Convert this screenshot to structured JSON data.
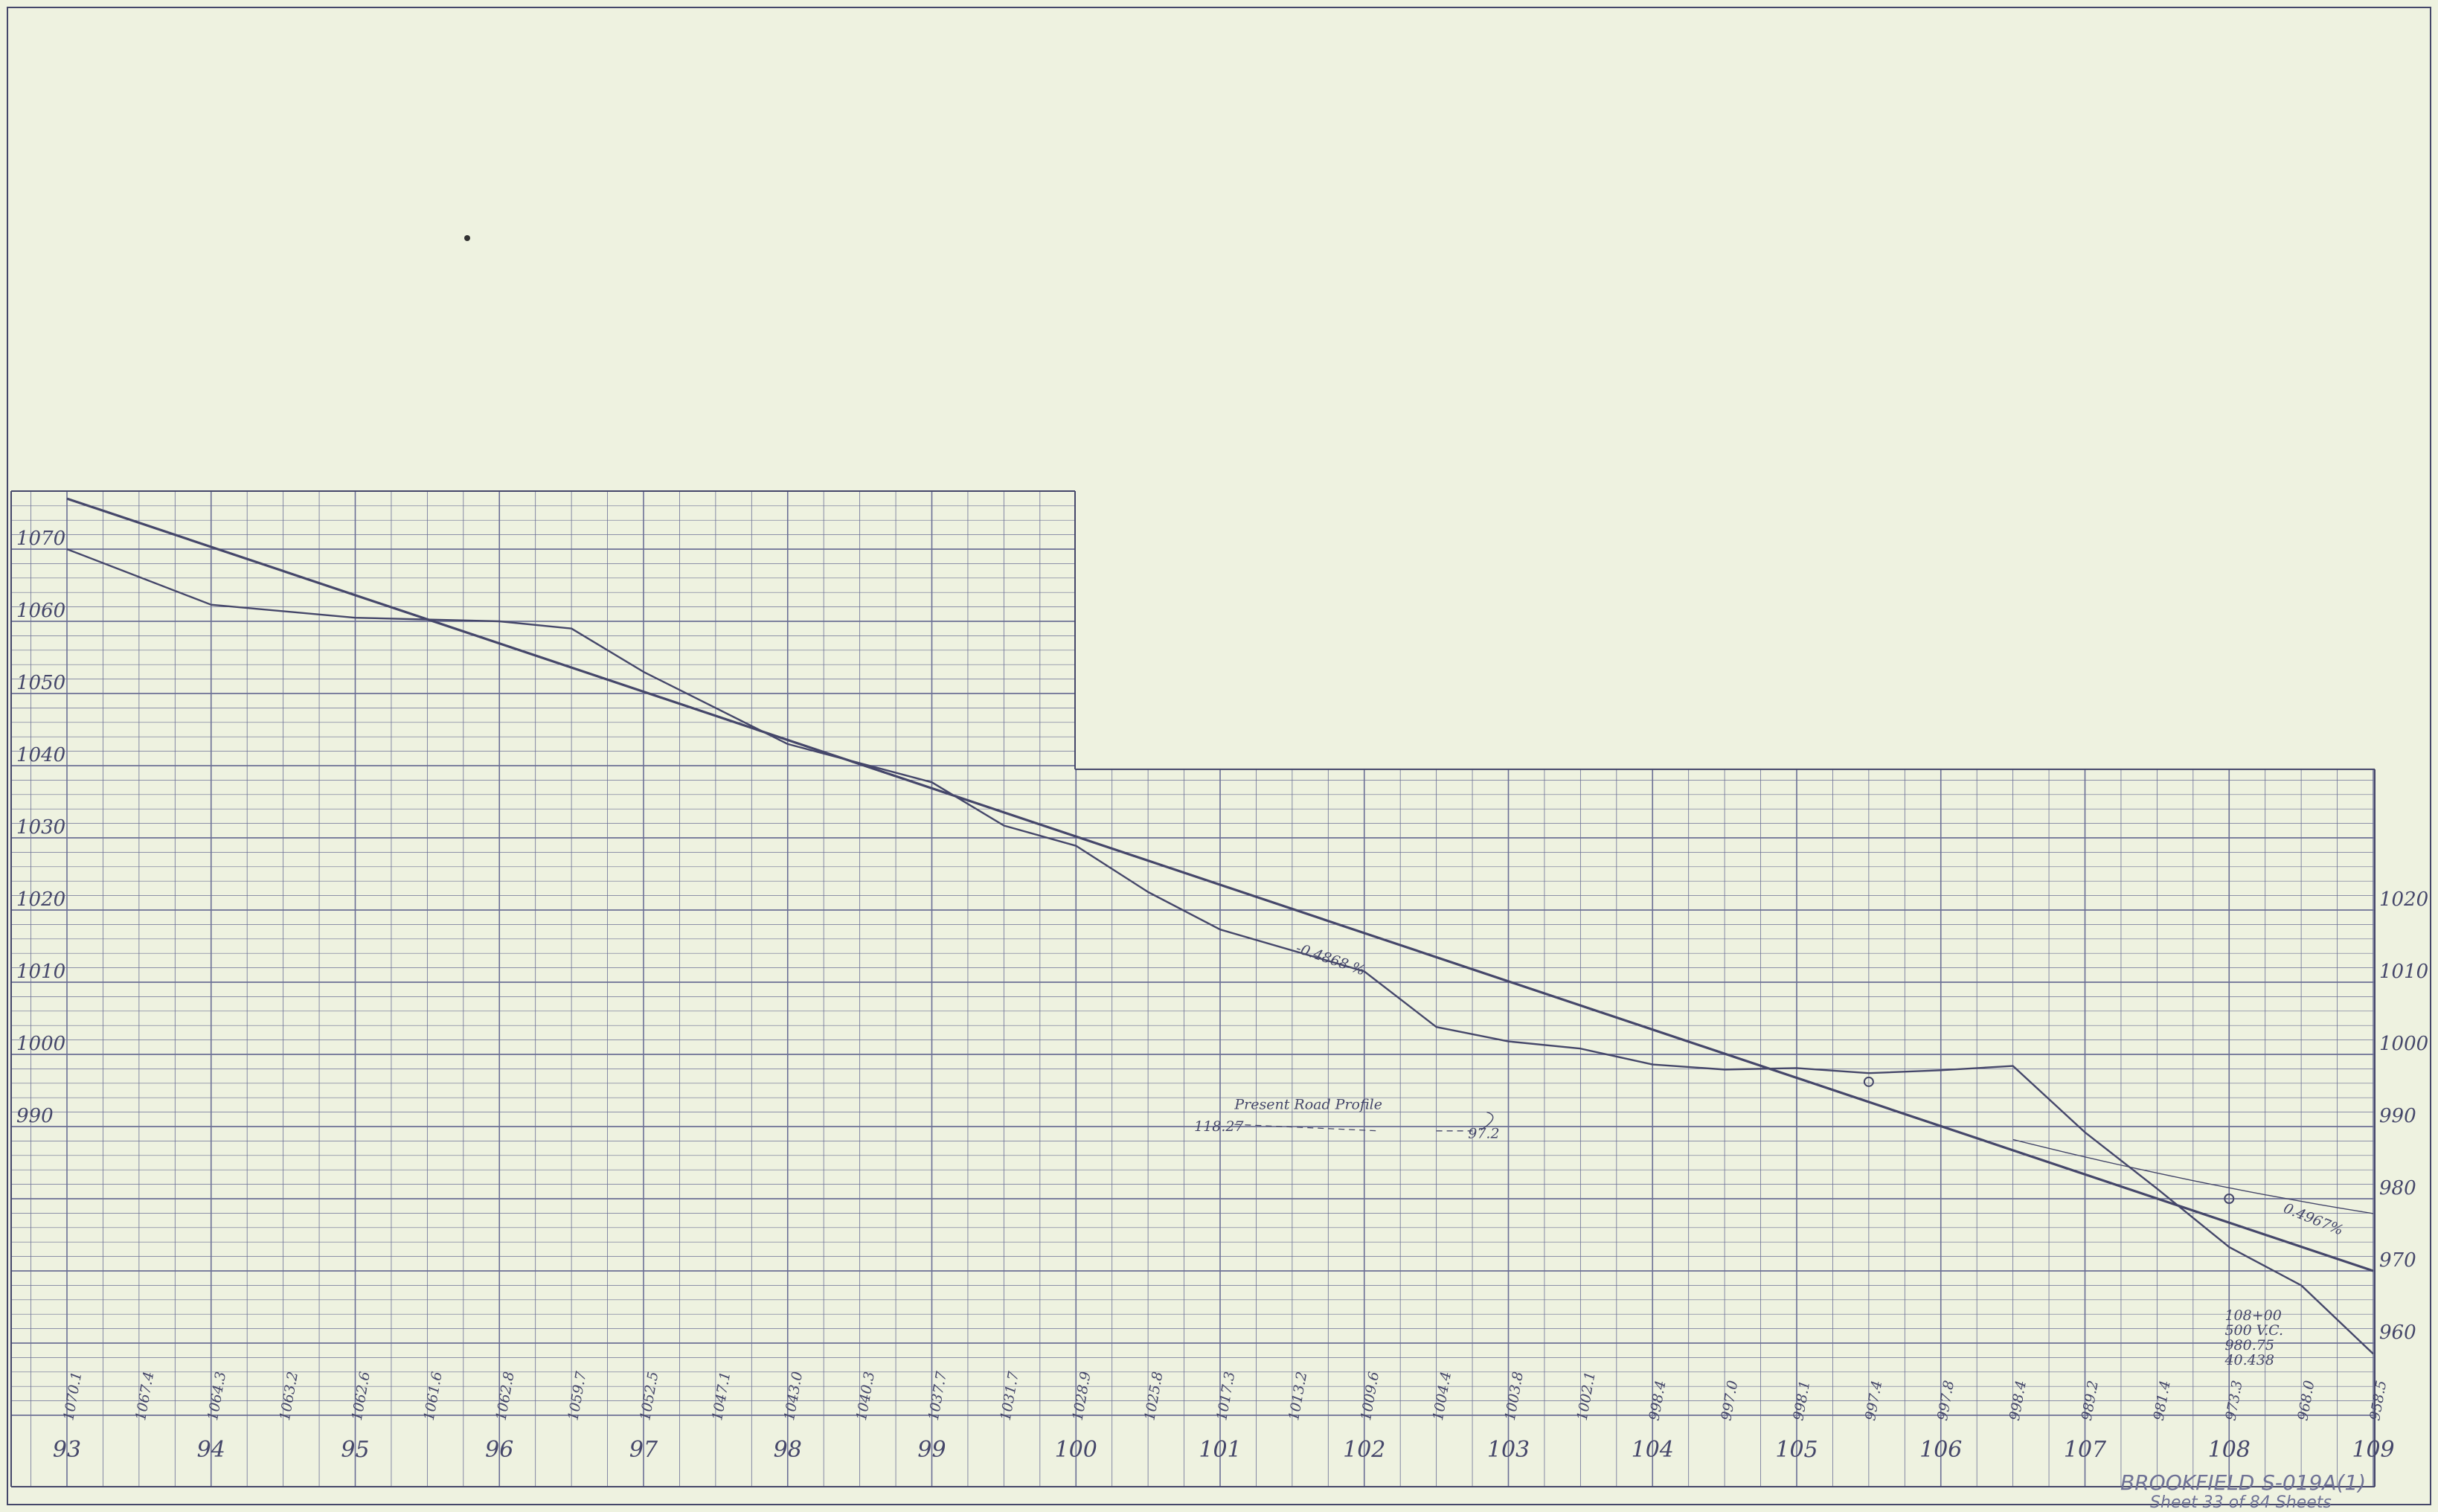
{
  "chart_data": {
    "type": "line",
    "x_axis": {
      "tick_labels": [
        "93",
        "94",
        "95",
        "96",
        "97",
        "98",
        "99",
        "100",
        "101",
        "102",
        "103",
        "104",
        "105",
        "106",
        "107",
        "108",
        "109"
      ],
      "range": [
        93,
        109
      ]
    },
    "y_axis": {
      "left_tick_labels": [
        "1070",
        "1060",
        "1050",
        "1040",
        "1030",
        "1020",
        "1010",
        "1000",
        "990"
      ],
      "right_tick_labels": [
        "1020",
        "1010",
        "1000",
        "990",
        "980",
        "970",
        "960"
      ],
      "range": [
        953,
        1078
      ]
    },
    "series": [
      {
        "role": "grade",
        "x": [
          93,
          109
        ],
        "y": [
          1077,
          970
        ]
      },
      {
        "role": "ground",
        "x": [
          93.0,
          94.0,
          95.0,
          96.0,
          96.5,
          97.0,
          98.0,
          99.0,
          99.5,
          100.0,
          100.5,
          101.0,
          102.0,
          102.5,
          103.0,
          103.5,
          104.0,
          104.5,
          105.0,
          105.5,
          106.0,
          106.5,
          107.0,
          107.5,
          108.0,
          108.5,
          109.0
        ],
        "y": [
          1070.0,
          1062.3,
          1060.5,
          1060.0,
          1059.0,
          1053.0,
          1043.0,
          1037.7,
          1031.7,
          1028.9,
          1022.5,
          1017.3,
          1011.5,
          1003.8,
          1001.8,
          1000.8,
          998.6,
          997.9,
          998.1,
          997.4,
          997.8,
          998.4,
          989.2,
          981.4,
          973.3,
          968.0,
          958.5
        ]
      }
    ],
    "ground_elevation_labels": [
      "1070.1",
      "1067.4",
      "1064.3",
      "1063.2",
      "1062.6",
      "1061.6",
      "1062.8",
      "1059.7",
      "1052.5",
      "1047.1",
      "1043.0",
      "1040.3",
      "1037.7",
      "1031.7",
      "1028.9",
      "1025.8",
      "1017.3",
      "1013.2",
      "1009.6",
      "1004.4",
      "1003.8",
      "1002.1",
      "998.4",
      "997.0",
      "998.1",
      "997.4",
      "997.8",
      "998.4",
      "989.2",
      "981.4",
      "973.3",
      "968.0",
      "958.5"
    ],
    "annotations": {
      "grade": "-0.4868 %",
      "present_road": "Present Road Profile",
      "el_left": "118.27",
      "el_right": "97.2",
      "grade_right": "0.4967%",
      "curve": [
        "108+00",
        "500 V.C.",
        "980.75",
        "40.438"
      ]
    }
  },
  "title_block": {
    "project": "BROOKFIELD",
    "number": "S-019A(1)",
    "sheet": "Sheet 33 of 84 Sheets"
  },
  "colors": {
    "background": "#eef2e0",
    "ink": "#45476a",
    "grid": "#6b6f95"
  }
}
